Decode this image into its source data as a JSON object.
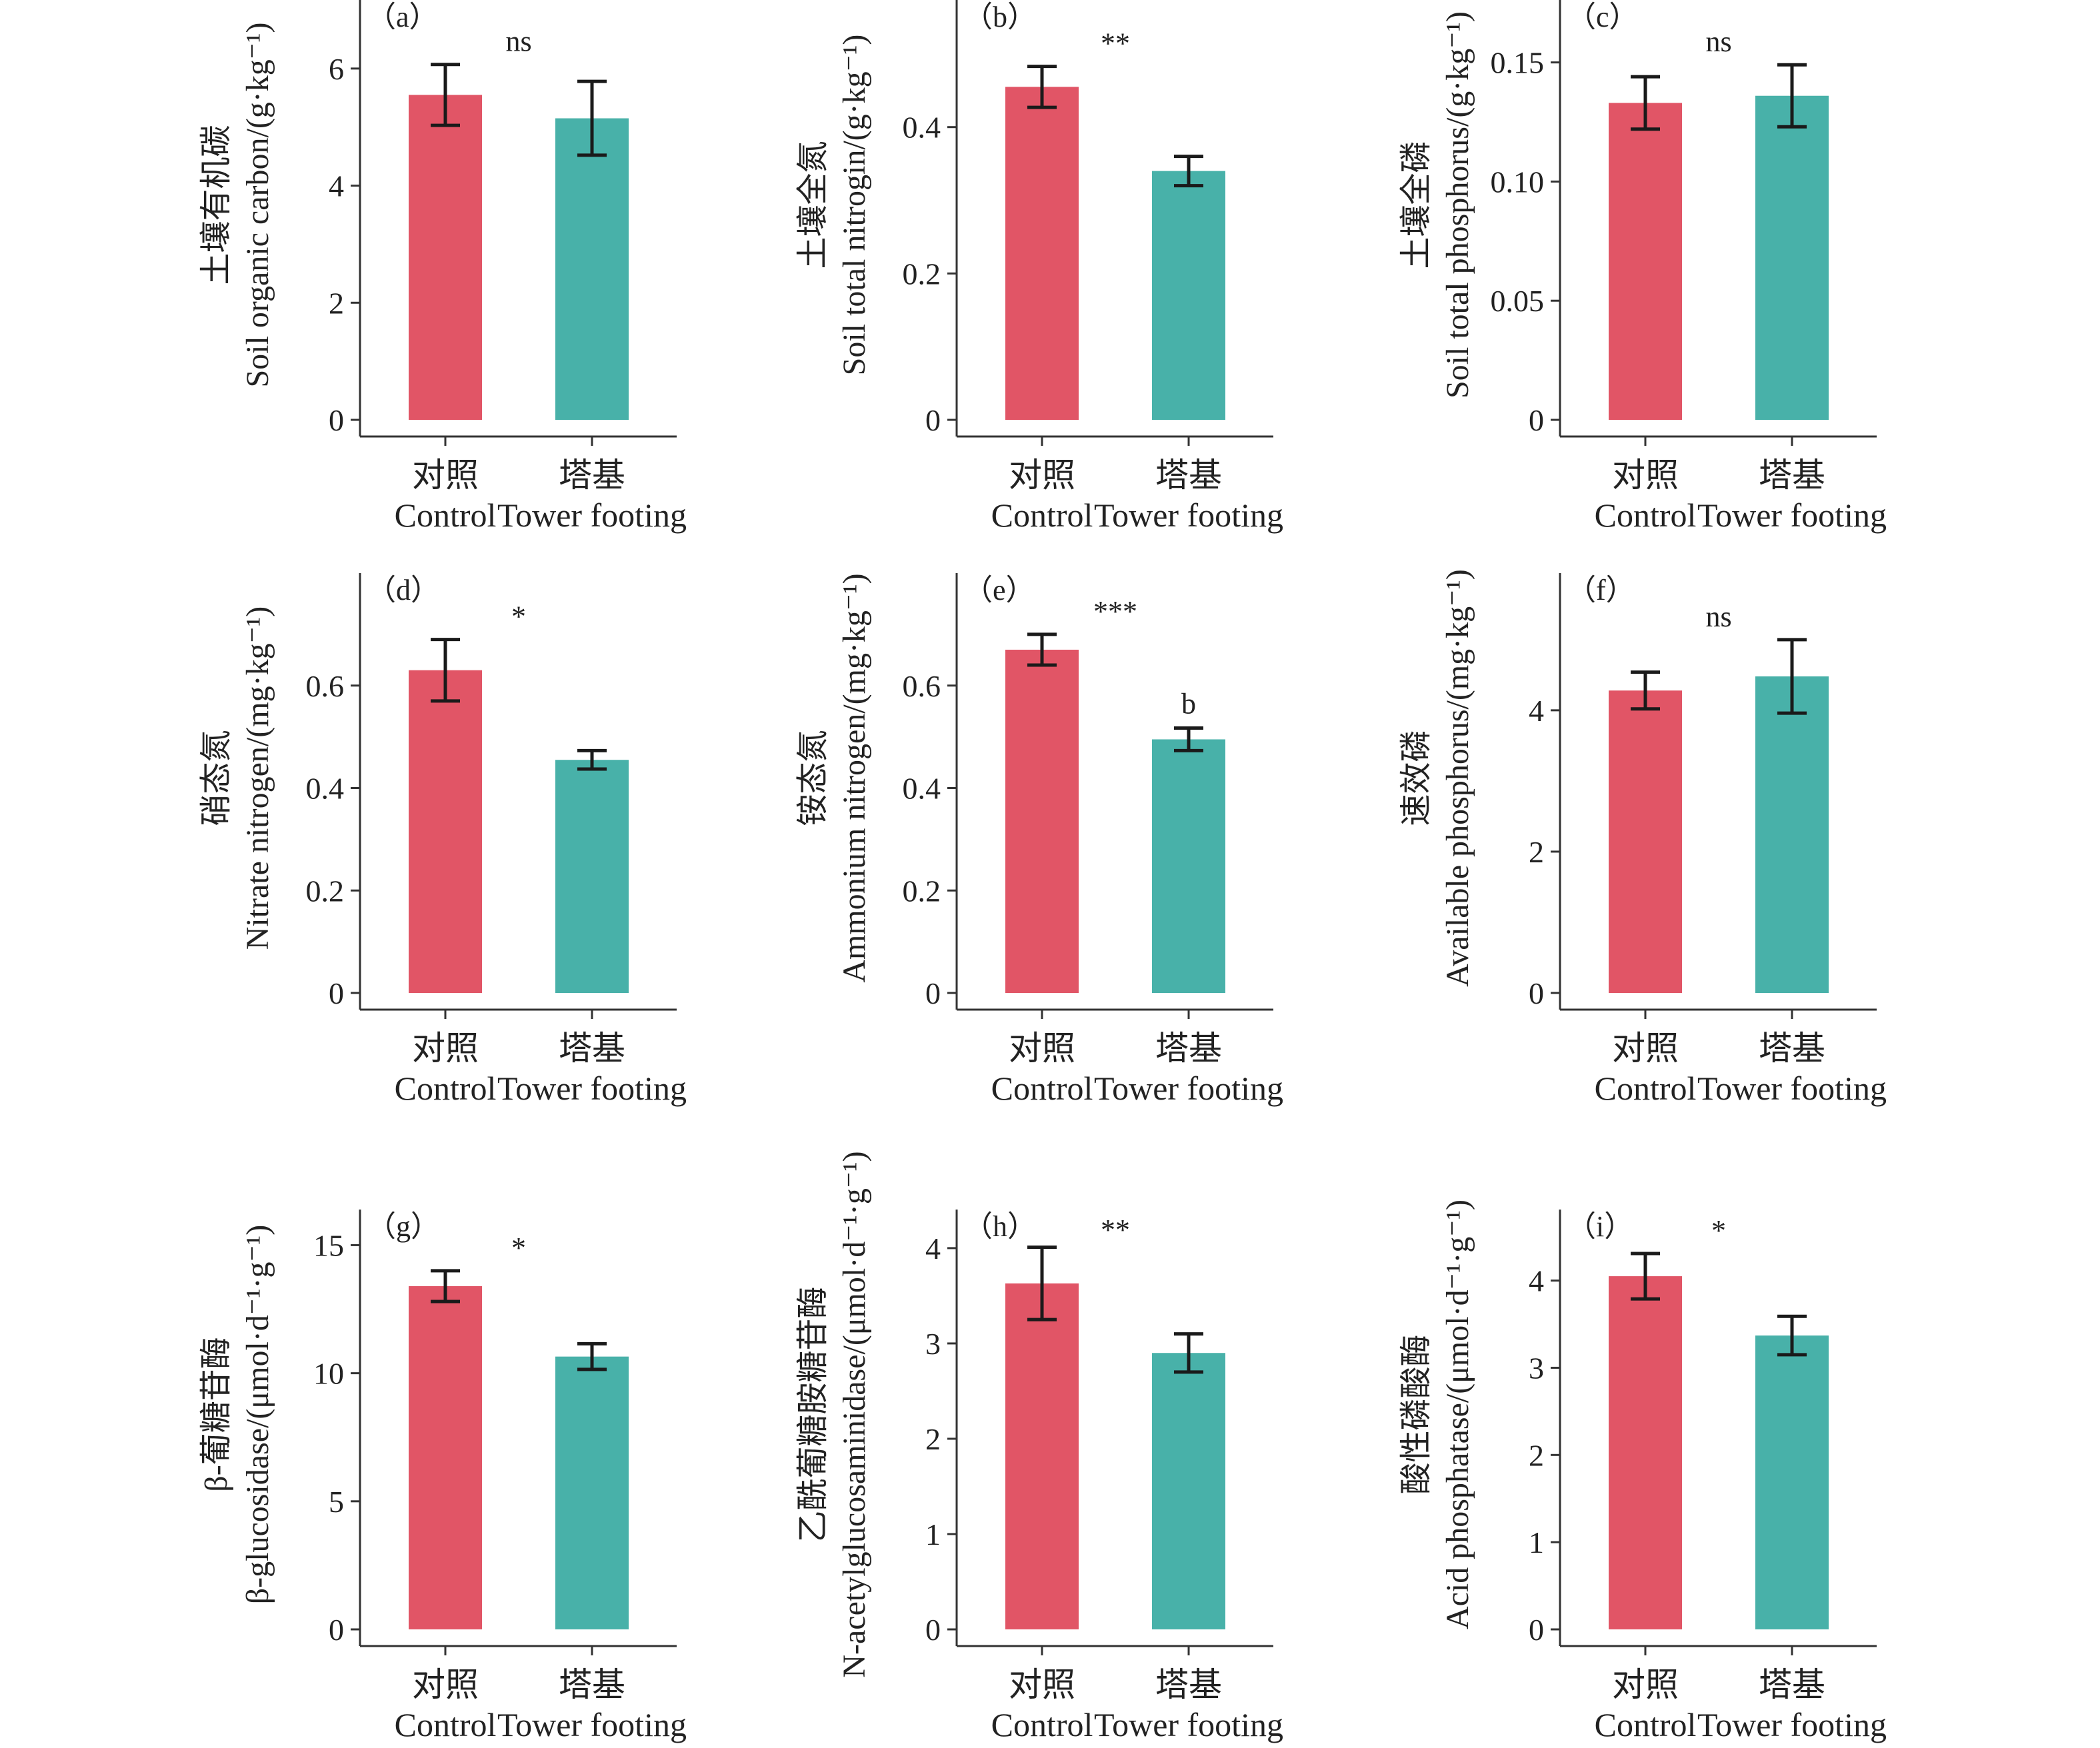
{
  "figure": {
    "colors": {
      "control": "#E15566",
      "tower": "#48B1A9",
      "axis": "#333333",
      "error": "#1a1a1a"
    }
  },
  "chart_data": [
    {
      "type": "bar",
      "panel": "（a）",
      "significance": "ns",
      "categories": [
        "对照",
        "塔基"
      ],
      "categories_en": [
        "Control",
        "Tower footing"
      ],
      "ylabel_cn": "土壤有机碳",
      "ylabel_en": "Soil organic carbon/(g·kg⁻¹)",
      "ylim": [
        0,
        7
      ],
      "yticks": [
        0,
        2,
        4,
        6
      ],
      "ytick_labels": [
        "0",
        "2",
        "4",
        "6"
      ],
      "values": [
        5.55,
        5.15
      ],
      "errors": [
        0.52,
        0.63
      ]
    },
    {
      "type": "bar",
      "panel": "（b）",
      "significance": "**",
      "categories": [
        "对照",
        "塔基"
      ],
      "categories_en": [
        "Control",
        "Tower footing"
      ],
      "ylabel_cn": "土壤全氮",
      "ylabel_en": "Soil total nitrogin/(g·kg⁻¹)",
      "ylim": [
        0,
        0.56
      ],
      "yticks": [
        0,
        0.2,
        0.4
      ],
      "ytick_labels": [
        "0",
        "0.2",
        "0.4"
      ],
      "values": [
        0.455,
        0.34
      ],
      "errors": [
        0.028,
        0.02
      ]
    },
    {
      "type": "bar",
      "panel": "（c）",
      "significance": "ns",
      "categories": [
        "对照",
        "塔基"
      ],
      "categories_en": [
        "Control",
        "Tower footing"
      ],
      "ylabel_cn": "土壤全磷",
      "ylabel_en": "Soil total phosphorus/(g·kg⁻¹)",
      "ylim": [
        0,
        0.172
      ],
      "yticks": [
        0,
        0.05,
        0.1,
        0.15
      ],
      "ytick_labels": [
        "0",
        "0.05",
        "0.10",
        "0.15"
      ],
      "values": [
        0.133,
        0.136
      ],
      "errors": [
        0.011,
        0.013
      ]
    },
    {
      "type": "bar",
      "panel": "（d）",
      "significance": "*",
      "categories": [
        "对照",
        "塔基"
      ],
      "categories_en": [
        "Control",
        "Tower footing"
      ],
      "ylabel_cn": "硝态氮",
      "ylabel_en": "Nitrate nitrogen/(mg·kg⁻¹)",
      "ylim": [
        0,
        0.8
      ],
      "yticks": [
        0,
        0.2,
        0.4,
        0.6
      ],
      "ytick_labels": [
        "0",
        "0.2",
        "0.4",
        "0.6"
      ],
      "values": [
        0.63,
        0.455
      ],
      "errors": [
        0.06,
        0.018
      ]
    },
    {
      "type": "bar",
      "panel": "（e）",
      "significance": "***",
      "annotation": "b",
      "categories": [
        "对照",
        "塔基"
      ],
      "categories_en": [
        "Control",
        "Tower footing"
      ],
      "ylabel_cn": "铵态氮",
      "ylabel_en": "Ammonium nitrogen/(mg·kg⁻¹)",
      "ylim": [
        0,
        0.8
      ],
      "yticks": [
        0,
        0.2,
        0.4,
        0.6
      ],
      "ytick_labels": [
        "0",
        "0.2",
        "0.4",
        "0.6"
      ],
      "values": [
        0.67,
        0.495
      ],
      "errors": [
        0.03,
        0.022
      ]
    },
    {
      "type": "bar",
      "panel": "（f）",
      "significance": "ns",
      "categories": [
        "对照",
        "塔基"
      ],
      "categories_en": [
        "Control",
        "Tower footing"
      ],
      "ylabel_cn": "速效磷",
      "ylabel_en": "Available phosphorus/(mg·kg⁻¹)",
      "ylim": [
        0,
        5.8
      ],
      "yticks": [
        0,
        2,
        4
      ],
      "ytick_labels": [
        "0",
        "2",
        "4"
      ],
      "values": [
        4.28,
        4.48
      ],
      "errors": [
        0.26,
        0.52
      ]
    },
    {
      "type": "bar",
      "panel": "（g）",
      "significance": "*",
      "categories": [
        "对照",
        "塔基"
      ],
      "categories_en": [
        "Control",
        "Tower footing"
      ],
      "ylabel_cn": "β-葡糖苷酶",
      "ylabel_en": "β-glucosidase/(μmol·d⁻¹·g⁻¹)",
      "ylim": [
        0,
        16
      ],
      "yticks": [
        0,
        5,
        10,
        15
      ],
      "ytick_labels": [
        "0",
        "5",
        "10",
        "15"
      ],
      "values": [
        13.4,
        10.65
      ],
      "errors": [
        0.6,
        0.5
      ]
    },
    {
      "type": "bar",
      "panel": "（h）",
      "significance": "**",
      "categories": [
        "对照",
        "塔基"
      ],
      "categories_en": [
        "Control",
        "Tower footing"
      ],
      "ylabel_cn": "乙酰葡糖胺糖苷酶",
      "ylabel_en": "N-acetylglucosaminidase/(μmol·d⁻¹·g⁻¹)",
      "ylim": [
        0,
        4.3
      ],
      "yticks": [
        0,
        1,
        2,
        3,
        4
      ],
      "ytick_labels": [
        "0",
        "1",
        "2",
        "3",
        "4"
      ],
      "values": [
        3.63,
        2.9
      ],
      "errors": [
        0.38,
        0.2
      ]
    },
    {
      "type": "bar",
      "panel": "（i）",
      "significance": "*",
      "categories": [
        "对照",
        "塔基"
      ],
      "categories_en": [
        "Control",
        "Tower footing"
      ],
      "ylabel_cn": "酸性磷酸酶",
      "ylabel_en": "Acid phosphatase/(μmol·d⁻¹·g⁻¹)",
      "ylim": [
        0,
        4.7
      ],
      "yticks": [
        0,
        1,
        2,
        3,
        4
      ],
      "ytick_labels": [
        "0",
        "1",
        "2",
        "3",
        "4"
      ],
      "values": [
        4.05,
        3.37
      ],
      "errors": [
        0.26,
        0.22
      ]
    }
  ]
}
